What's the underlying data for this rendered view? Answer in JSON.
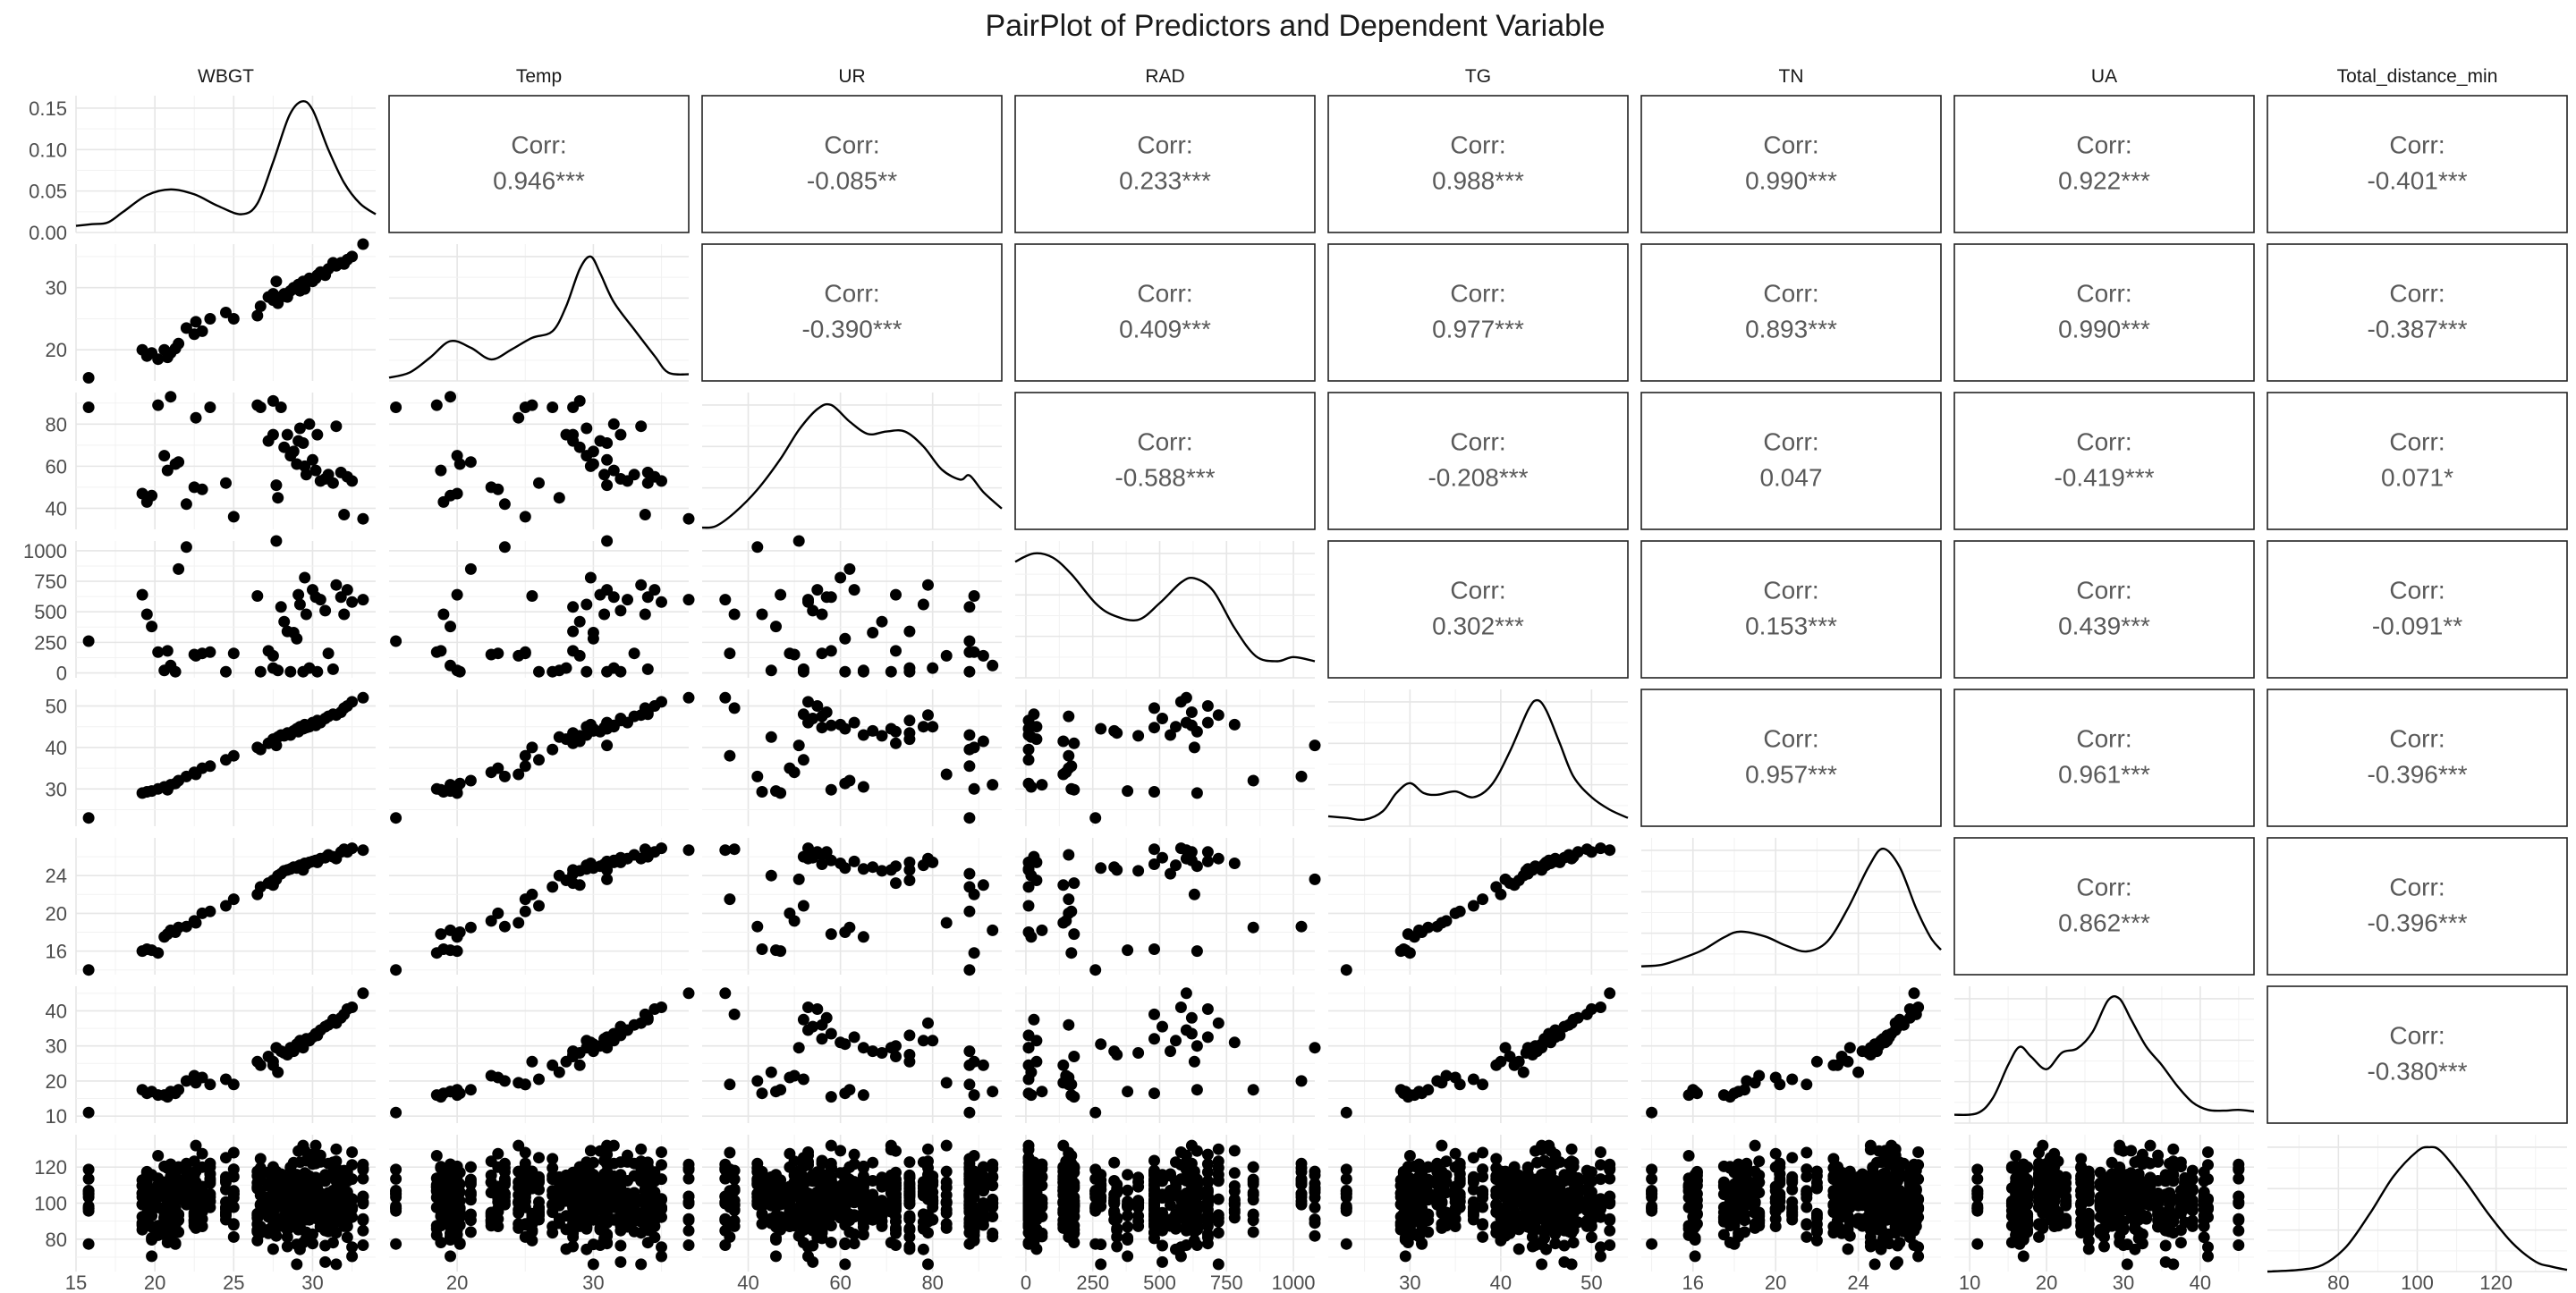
{
  "chart_data": {
    "type": "pairplot",
    "title": "PairPlot of Predictors and Dependent Variable",
    "variables": [
      "WBGT",
      "Temp",
      "UR",
      "RAD",
      "TG",
      "TN",
      "UA",
      "Total_distance_min"
    ],
    "ranges": {
      "WBGT": [
        15,
        34
      ],
      "Temp": [
        15,
        37
      ],
      "UR": [
        30,
        95
      ],
      "RAD": [
        -40,
        1080
      ],
      "TG": [
        21,
        54
      ],
      "TN": [
        13.5,
        28
      ],
      "UA": [
        8,
        47
      ],
      "Total_distance_min": [
        62,
        138
      ]
    },
    "ticks": {
      "WBGT": [
        15,
        20,
        25,
        30
      ],
      "Temp": [
        20,
        30
      ],
      "UR": [
        40,
        60,
        80
      ],
      "RAD": [
        0,
        250,
        500,
        750,
        1000
      ],
      "TG": [
        30,
        40,
        50
      ],
      "TN": [
        16,
        20,
        24
      ],
      "UA": [
        10,
        20,
        30,
        40
      ],
      "Total_distance_min": [
        80,
        100,
        120
      ]
    },
    "density_y_ticks": [
      0.0,
      0.05,
      0.1,
      0.15
    ],
    "density_y_tick_labels": [
      "0.00",
      "0.05",
      "0.10",
      "0.15"
    ],
    "density_y_max": 0.165,
    "correlations": [
      {
        "row": "WBGT",
        "col": "Temp",
        "value": "0.946***"
      },
      {
        "row": "WBGT",
        "col": "UR",
        "value": "-0.085**"
      },
      {
        "row": "WBGT",
        "col": "RAD",
        "value": "0.233***"
      },
      {
        "row": "WBGT",
        "col": "TG",
        "value": "0.988***"
      },
      {
        "row": "WBGT",
        "col": "TN",
        "value": "0.990***"
      },
      {
        "row": "WBGT",
        "col": "UA",
        "value": "0.922***"
      },
      {
        "row": "WBGT",
        "col": "Total_distance_min",
        "value": "-0.401***"
      },
      {
        "row": "Temp",
        "col": "UR",
        "value": "-0.390***"
      },
      {
        "row": "Temp",
        "col": "RAD",
        "value": "0.409***"
      },
      {
        "row": "Temp",
        "col": "TG",
        "value": "0.977***"
      },
      {
        "row": "Temp",
        "col": "TN",
        "value": "0.893***"
      },
      {
        "row": "Temp",
        "col": "UA",
        "value": "0.990***"
      },
      {
        "row": "Temp",
        "col": "Total_distance_min",
        "value": "-0.387***"
      },
      {
        "row": "UR",
        "col": "RAD",
        "value": "-0.588***"
      },
      {
        "row": "UR",
        "col": "TG",
        "value": "-0.208***"
      },
      {
        "row": "UR",
        "col": "TN",
        "value": "0.047"
      },
      {
        "row": "UR",
        "col": "UA",
        "value": "-0.419***"
      },
      {
        "row": "UR",
        "col": "Total_distance_min",
        "value": "0.071*"
      },
      {
        "row": "RAD",
        "col": "TG",
        "value": "0.302***"
      },
      {
        "row": "RAD",
        "col": "TN",
        "value": "0.153***"
      },
      {
        "row": "RAD",
        "col": "UA",
        "value": "0.439***"
      },
      {
        "row": "RAD",
        "col": "Total_distance_min",
        "value": "-0.091**"
      },
      {
        "row": "TG",
        "col": "TN",
        "value": "0.957***"
      },
      {
        "row": "TG",
        "col": "UA",
        "value": "0.961***"
      },
      {
        "row": "TG",
        "col": "Total_distance_min",
        "value": "-0.396***"
      },
      {
        "row": "TN",
        "col": "UA",
        "value": "0.862***"
      },
      {
        "row": "TN",
        "col": "Total_distance_min",
        "value": "-0.396***"
      },
      {
        "row": "UA",
        "col": "Total_distance_min",
        "value": "-0.380***"
      }
    ],
    "corr_prefix": "Corr:",
    "observations": [
      {
        "WBGT": 15.8,
        "Temp": 15.5,
        "UR": 88,
        "RAD": 260,
        "TG": 23.0,
        "TN": 14.0,
        "UA": 11.0
      },
      {
        "WBGT": 19.2,
        "Temp": 20.0,
        "UR": 47,
        "RAD": 640,
        "TG": 29.0,
        "TN": 16.0,
        "UA": 17.5
      },
      {
        "WBGT": 19.5,
        "Temp": 19.0,
        "UR": 43,
        "RAD": 480,
        "TG": 29.3,
        "TN": 16.2,
        "UA": 16.5
      },
      {
        "WBGT": 19.8,
        "Temp": 19.5,
        "UR": 46,
        "RAD": 380,
        "TG": 29.5,
        "TN": 16.1,
        "UA": 17.0
      },
      {
        "WBGT": 20.2,
        "Temp": 18.5,
        "UR": 89,
        "RAD": 170,
        "TG": 30.0,
        "TN": 15.8,
        "UA": 16.0
      },
      {
        "WBGT": 20.6,
        "Temp": 20.0,
        "UR": 65,
        "RAD": 20,
        "TG": 30.5,
        "TN": 17.5,
        "UA": 16.0
      },
      {
        "WBGT": 20.8,
        "Temp": 18.8,
        "UR": 58,
        "RAD": 180,
        "TG": 29.8,
        "TN": 17.8,
        "UA": 15.5
      },
      {
        "WBGT": 21.0,
        "Temp": 19.5,
        "UR": 93,
        "RAD": 60,
        "TG": 31.0,
        "TN": 18.2,
        "UA": 17.0
      },
      {
        "WBGT": 21.3,
        "Temp": 20.2,
        "UR": 61,
        "RAD": 10,
        "TG": 31.3,
        "TN": 18.0,
        "UA": 16.5
      },
      {
        "WBGT": 21.5,
        "Temp": 21.0,
        "UR": 62,
        "RAD": 850,
        "TG": 32.0,
        "TN": 18.5,
        "UA": 17.5
      },
      {
        "WBGT": 22.0,
        "Temp": 23.5,
        "UR": 42,
        "RAD": 1030,
        "TG": 33.0,
        "TN": 18.6,
        "UA": 20.0
      },
      {
        "WBGT": 22.5,
        "Temp": 22.5,
        "UR": 50,
        "RAD": 150,
        "TG": 34.0,
        "TN": 19.2,
        "UA": 21.5
      },
      {
        "WBGT": 22.6,
        "Temp": 24.5,
        "UR": 83,
        "RAD": 140,
        "TG": 33.5,
        "TN": 19.0,
        "UA": 19.5
      },
      {
        "WBGT": 23.0,
        "Temp": 23.0,
        "UR": 49,
        "RAD": 160,
        "TG": 35.0,
        "TN": 20.0,
        "UA": 21.0
      },
      {
        "WBGT": 23.5,
        "Temp": 25.0,
        "UR": 88,
        "RAD": 170,
        "TG": 35.5,
        "TN": 20.2,
        "UA": 19.0
      },
      {
        "WBGT": 24.5,
        "Temp": 26.0,
        "UR": 52,
        "RAD": 10,
        "TG": 37.0,
        "TN": 20.8,
        "UA": 20.5
      },
      {
        "WBGT": 25.0,
        "Temp": 25.0,
        "UR": 36,
        "RAD": 160,
        "TG": 38.0,
        "TN": 21.5,
        "UA": 19.0
      },
      {
        "WBGT": 26.5,
        "Temp": 25.5,
        "UR": 89,
        "RAD": 630,
        "TG": 40.0,
        "TN": 22.0,
        "UA": 25.5
      },
      {
        "WBGT": 26.7,
        "Temp": 27.0,
        "UR": 88,
        "RAD": 10,
        "TG": 39.5,
        "TN": 22.8,
        "UA": 24.5
      },
      {
        "WBGT": 27.2,
        "Temp": 28.5,
        "UR": 72,
        "RAD": 180,
        "TG": 41.0,
        "TN": 23.2,
        "UA": 27.0
      },
      {
        "WBGT": 27.5,
        "Temp": 28.0,
        "UR": 75,
        "RAD": 40,
        "TG": 42.0,
        "TN": 23.5,
        "UA": 25.5
      },
      {
        "WBGT": 27.5,
        "Temp": 29.0,
        "UR": 91,
        "RAD": 140,
        "TG": 41.5,
        "TN": 23.0,
        "UA": 24.5
      },
      {
        "WBGT": 27.7,
        "Temp": 31.0,
        "UR": 51,
        "RAD": 1230,
        "TG": 40.5,
        "TN": 23.6,
        "UA": 29.5
      },
      {
        "WBGT": 27.8,
        "Temp": 27.5,
        "UR": 45,
        "RAD": 20,
        "TG": 42.5,
        "TN": 24.0,
        "UA": 22.5
      },
      {
        "WBGT": 28.0,
        "Temp": 28.5,
        "UR": 88,
        "RAD": 540,
        "TG": 43.0,
        "TN": 24.2,
        "UA": 28.5
      },
      {
        "WBGT": 28.2,
        "Temp": 29.0,
        "UR": 69,
        "RAD": 420,
        "TG": 42.8,
        "TN": 24.5,
        "UA": 28.0
      },
      {
        "WBGT": 28.4,
        "Temp": 28.5,
        "UR": 75,
        "RAD": 340,
        "TG": 43.5,
        "TN": 24.6,
        "UA": 27.5
      },
      {
        "WBGT": 28.6,
        "Temp": 29.5,
        "UR": 65,
        "RAD": 10,
        "TG": 43.0,
        "TN": 24.7,
        "UA": 29.5
      },
      {
        "WBGT": 28.8,
        "Temp": 30.0,
        "UR": 67,
        "RAD": 330,
        "TG": 44.0,
        "TN": 24.9,
        "UA": 28.5
      },
      {
        "WBGT": 29.0,
        "Temp": 30.0,
        "UR": 61,
        "RAD": 280,
        "TG": 44.5,
        "TN": 24.8,
        "UA": 30.5
      },
      {
        "WBGT": 29.1,
        "Temp": 30.5,
        "UR": 72,
        "RAD": 640,
        "TG": 43.8,
        "TN": 25.0,
        "UA": 30.0
      },
      {
        "WBGT": 29.2,
        "Temp": 29.5,
        "UR": 78,
        "RAD": 560,
        "TG": 45.0,
        "TN": 25.1,
        "UA": 31.5
      },
      {
        "WBGT": 29.4,
        "Temp": 31.0,
        "UR": 71,
        "RAD": 10,
        "TG": 44.5,
        "TN": 24.6,
        "UA": 29.5
      },
      {
        "WBGT": 29.5,
        "Temp": 29.8,
        "UR": 60,
        "RAD": 780,
        "TG": 45.5,
        "TN": 25.3,
        "UA": 31.0
      },
      {
        "WBGT": 29.6,
        "Temp": 30.8,
        "UR": 56,
        "RAD": 480,
        "TG": 44.8,
        "TN": 25.2,
        "UA": 32.0
      },
      {
        "WBGT": 29.8,
        "Temp": 31.5,
        "UR": 80,
        "RAD": 40,
        "TG": 45.0,
        "TN": 25.4,
        "UA": 31.5
      },
      {
        "WBGT": 30.0,
        "Temp": 31.0,
        "UR": 63,
        "RAD": 680,
        "TG": 46.0,
        "TN": 25.5,
        "UA": 32.5
      },
      {
        "WBGT": 30.2,
        "Temp": 31.5,
        "UR": 58,
        "RAD": 620,
        "TG": 45.3,
        "TN": 25.6,
        "UA": 33.5
      },
      {
        "WBGT": 30.3,
        "Temp": 32.0,
        "UR": 75,
        "RAD": 10,
        "TG": 46.5,
        "TN": 25.4,
        "UA": 33.0
      },
      {
        "WBGT": 30.5,
        "Temp": 32.5,
        "UR": 53,
        "RAD": 600,
        "TG": 46.0,
        "TN": 25.8,
        "UA": 34.5
      },
      {
        "WBGT": 30.8,
        "Temp": 32.0,
        "UR": 54,
        "RAD": 510,
        "TG": 47.0,
        "TN": 25.9,
        "UA": 35.5
      },
      {
        "WBGT": 31.0,
        "Temp": 33.0,
        "UR": 56,
        "RAD": 160,
        "TG": 47.5,
        "TN": 26.2,
        "UA": 36.0
      },
      {
        "WBGT": 31.3,
        "Temp": 34.0,
        "UR": 52,
        "RAD": 30,
        "TG": 48.0,
        "TN": 26.0,
        "UA": 37.5
      },
      {
        "WBGT": 31.5,
        "Temp": 33.5,
        "UR": 79,
        "RAD": 720,
        "TG": 47.8,
        "TN": 25.8,
        "UA": 36.5
      },
      {
        "WBGT": 31.8,
        "Temp": 34.0,
        "UR": 57,
        "RAD": 620,
        "TG": 48.5,
        "TN": 26.5,
        "UA": 38.0
      },
      {
        "WBGT": 32.0,
        "Temp": 33.8,
        "UR": 37,
        "RAD": 480,
        "TG": 49.5,
        "TN": 26.8,
        "UA": 39.0
      },
      {
        "WBGT": 32.2,
        "Temp": 34.5,
        "UR": 55,
        "RAD": 680,
        "TG": 50.0,
        "TN": 26.5,
        "UA": 40.5
      },
      {
        "WBGT": 32.5,
        "Temp": 35.0,
        "UR": 53,
        "RAD": 580,
        "TG": 51.0,
        "TN": 26.9,
        "UA": 41.0
      },
      {
        "WBGT": 33.2,
        "Temp": 37.0,
        "UR": 35,
        "RAD": 600,
        "TG": 52.0,
        "TN": 26.7,
        "UA": 45.0
      }
    ],
    "total_distance_min": {
      "summary": "about 600 observations, roughly normal around 102 min, range about 66 to 132",
      "mean": 102,
      "sd": 12,
      "min": 66,
      "max": 132
    },
    "densities": {
      "WBGT": [
        [
          15,
          0.008
        ],
        [
          16,
          0.01
        ],
        [
          17,
          0.012
        ],
        [
          18,
          0.025
        ],
        [
          19.5,
          0.045
        ],
        [
          21,
          0.052
        ],
        [
          22.5,
          0.046
        ],
        [
          24,
          0.032
        ],
        [
          25.5,
          0.022
        ],
        [
          26.5,
          0.035
        ],
        [
          27.5,
          0.085
        ],
        [
          28.5,
          0.14
        ],
        [
          29.3,
          0.158
        ],
        [
          30,
          0.148
        ],
        [
          31,
          0.1
        ],
        [
          32,
          0.06
        ],
        [
          33,
          0.035
        ],
        [
          34,
          0.022
        ]
      ],
      "Temp": [
        [
          15,
          0.004
        ],
        [
          16.5,
          0.01
        ],
        [
          18,
          0.028
        ],
        [
          19.5,
          0.048
        ],
        [
          21,
          0.04
        ],
        [
          22.5,
          0.026
        ],
        [
          24,
          0.038
        ],
        [
          25.5,
          0.052
        ],
        [
          27,
          0.06
        ],
        [
          28,
          0.09
        ],
        [
          29,
          0.135
        ],
        [
          29.8,
          0.15
        ],
        [
          30.5,
          0.13
        ],
        [
          31.5,
          0.095
        ],
        [
          33,
          0.062
        ],
        [
          34.5,
          0.03
        ],
        [
          35.5,
          0.01
        ],
        [
          37,
          0.008
        ]
      ],
      "UR": [
        [
          30,
          0.002
        ],
        [
          33,
          0.004
        ],
        [
          37,
          0.02
        ],
        [
          42,
          0.048
        ],
        [
          47,
          0.085
        ],
        [
          51,
          0.12
        ],
        [
          55,
          0.145
        ],
        [
          58,
          0.15
        ],
        [
          62,
          0.13
        ],
        [
          66,
          0.115
        ],
        [
          70,
          0.118
        ],
        [
          74,
          0.118
        ],
        [
          78,
          0.1
        ],
        [
          82,
          0.072
        ],
        [
          86,
          0.06
        ],
        [
          88,
          0.065
        ],
        [
          91,
          0.045
        ],
        [
          95,
          0.025
        ]
      ],
      "RAD": [
        [
          -40,
          0.14
        ],
        [
          30,
          0.15
        ],
        [
          100,
          0.145
        ],
        [
          170,
          0.125
        ],
        [
          260,
          0.09
        ],
        [
          330,
          0.075
        ],
        [
          420,
          0.07
        ],
        [
          500,
          0.09
        ],
        [
          580,
          0.115
        ],
        [
          630,
          0.12
        ],
        [
          700,
          0.105
        ],
        [
          780,
          0.06
        ],
        [
          860,
          0.026
        ],
        [
          940,
          0.02
        ],
        [
          1000,
          0.025
        ],
        [
          1080,
          0.02
        ]
      ],
      "TG": [
        [
          21,
          0.012
        ],
        [
          23,
          0.01
        ],
        [
          25,
          0.008
        ],
        [
          27,
          0.018
        ],
        [
          28.5,
          0.04
        ],
        [
          30,
          0.052
        ],
        [
          31.5,
          0.04
        ],
        [
          33,
          0.038
        ],
        [
          35,
          0.042
        ],
        [
          37,
          0.035
        ],
        [
          39,
          0.05
        ],
        [
          41,
          0.09
        ],
        [
          43,
          0.14
        ],
        [
          44,
          0.152
        ],
        [
          45,
          0.14
        ],
        [
          46.5,
          0.1
        ],
        [
          48,
          0.06
        ],
        [
          50,
          0.035
        ],
        [
          52,
          0.02
        ],
        [
          54,
          0.01
        ]
      ],
      "TN": [
        [
          13.5,
          0.01
        ],
        [
          14.5,
          0.012
        ],
        [
          15.5,
          0.02
        ],
        [
          16.5,
          0.03
        ],
        [
          17.5,
          0.045
        ],
        [
          18.3,
          0.052
        ],
        [
          19.5,
          0.046
        ],
        [
          20.5,
          0.035
        ],
        [
          21.5,
          0.028
        ],
        [
          22.5,
          0.04
        ],
        [
          23.5,
          0.08
        ],
        [
          24.5,
          0.13
        ],
        [
          25.2,
          0.152
        ],
        [
          26,
          0.13
        ],
        [
          26.8,
          0.08
        ],
        [
          27.5,
          0.045
        ],
        [
          28,
          0.03
        ]
      ],
      "UA": [
        [
          8,
          0.01
        ],
        [
          11,
          0.012
        ],
        [
          13,
          0.03
        ],
        [
          15,
          0.07
        ],
        [
          16.5,
          0.092
        ],
        [
          18,
          0.08
        ],
        [
          20,
          0.065
        ],
        [
          22,
          0.085
        ],
        [
          24,
          0.09
        ],
        [
          26,
          0.11
        ],
        [
          28,
          0.148
        ],
        [
          29.5,
          0.15
        ],
        [
          31,
          0.125
        ],
        [
          33,
          0.092
        ],
        [
          35,
          0.07
        ],
        [
          37,
          0.045
        ],
        [
          39,
          0.025
        ],
        [
          41,
          0.016
        ],
        [
          43,
          0.015
        ],
        [
          45,
          0.016
        ],
        [
          47,
          0.014
        ]
      ],
      "Total_distance_min": [
        [
          62,
          0.0
        ],
        [
          70,
          0.002
        ],
        [
          76,
          0.008
        ],
        [
          82,
          0.03
        ],
        [
          88,
          0.07
        ],
        [
          94,
          0.115
        ],
        [
          100,
          0.145
        ],
        [
          103,
          0.15
        ],
        [
          106,
          0.145
        ],
        [
          112,
          0.11
        ],
        [
          118,
          0.07
        ],
        [
          124,
          0.035
        ],
        [
          130,
          0.012
        ],
        [
          134,
          0.006
        ],
        [
          138,
          0.002
        ]
      ]
    }
  }
}
